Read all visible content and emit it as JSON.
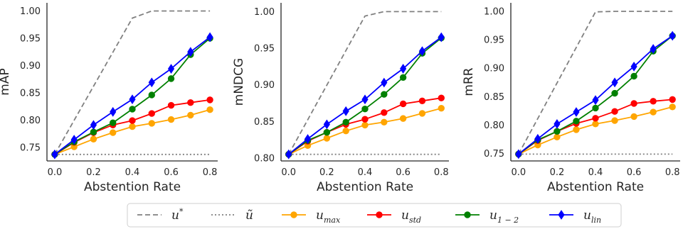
{
  "chart_data": [
    {
      "type": "line",
      "ylabel": "mAP",
      "xlabel": "Abstention Rate",
      "xlim": [
        -0.04,
        0.84
      ],
      "ylim": [
        0.725,
        1.015
      ],
      "xticks": [
        "0.0",
        "0.2",
        "0.4",
        "0.6",
        "0.8"
      ],
      "yticks": [
        "0.75",
        "0.80",
        "0.85",
        "0.90",
        "0.95",
        "1.00"
      ],
      "series": [
        {
          "name": "u*",
          "x": [
            0,
            0.4,
            0.5,
            0.8
          ],
          "values": [
            0.737,
            0.987,
            1.0,
            1.0
          ]
        },
        {
          "name": "ũ",
          "x": [
            0,
            0.8
          ],
          "values": [
            0.737,
            0.737
          ]
        },
        {
          "name": "u_max",
          "x": [
            0,
            0.1,
            0.2,
            0.3,
            0.4,
            0.5,
            0.6,
            0.7,
            0.8
          ],
          "values": [
            0.737,
            0.751,
            0.765,
            0.777,
            0.788,
            0.794,
            0.801,
            0.809,
            0.819
          ]
        },
        {
          "name": "u_std",
          "x": [
            0,
            0.1,
            0.2,
            0.3,
            0.4,
            0.5,
            0.6,
            0.7,
            0.8
          ],
          "values": [
            0.737,
            0.759,
            0.777,
            0.791,
            0.799,
            0.812,
            0.827,
            0.832,
            0.837
          ]
        },
        {
          "name": "u_{1-2}",
          "x": [
            0,
            0.1,
            0.2,
            0.3,
            0.4,
            0.5,
            0.6,
            0.7,
            0.8
          ],
          "values": [
            0.737,
            0.76,
            0.778,
            0.795,
            0.82,
            0.846,
            0.876,
            0.92,
            0.95
          ]
        },
        {
          "name": "u_lin",
          "x": [
            0,
            0.1,
            0.2,
            0.3,
            0.4,
            0.5,
            0.6,
            0.7,
            0.8
          ],
          "values": [
            0.737,
            0.764,
            0.791,
            0.815,
            0.838,
            0.869,
            0.894,
            0.925,
            0.952
          ]
        }
      ]
    },
    {
      "type": "line",
      "ylabel": "mNDCG",
      "xlabel": "Abstention Rate",
      "xlim": [
        -0.04,
        0.84
      ],
      "ylim": [
        0.796,
        1.012
      ],
      "xticks": [
        "0.0",
        "0.2",
        "0.4",
        "0.6",
        "0.8"
      ],
      "yticks": [
        "0.80",
        "0.85",
        "0.90",
        "0.95",
        "1.00"
      ],
      "series": [
        {
          "name": "u*",
          "x": [
            0,
            0.4,
            0.5,
            0.8
          ],
          "values": [
            0.805,
            0.994,
            1.0,
            1.0
          ]
        },
        {
          "name": "ũ",
          "x": [
            0,
            0.8
          ],
          "values": [
            0.805,
            0.805
          ]
        },
        {
          "name": "u_max",
          "x": [
            0,
            0.1,
            0.2,
            0.3,
            0.4,
            0.5,
            0.6,
            0.7,
            0.8
          ],
          "values": [
            0.805,
            0.817,
            0.827,
            0.837,
            0.845,
            0.849,
            0.854,
            0.861,
            0.868
          ]
        },
        {
          "name": "u_std",
          "x": [
            0,
            0.1,
            0.2,
            0.3,
            0.4,
            0.5,
            0.6,
            0.7,
            0.8
          ],
          "values": [
            0.805,
            0.823,
            0.835,
            0.846,
            0.853,
            0.862,
            0.874,
            0.878,
            0.882
          ]
        },
        {
          "name": "u_{1-2}",
          "x": [
            0,
            0.1,
            0.2,
            0.3,
            0.4,
            0.5,
            0.6,
            0.7,
            0.8
          ],
          "values": [
            0.805,
            0.824,
            0.835,
            0.849,
            0.867,
            0.887,
            0.91,
            0.943,
            0.964
          ]
        },
        {
          "name": "u_lin",
          "x": [
            0,
            0.1,
            0.2,
            0.3,
            0.4,
            0.5,
            0.6,
            0.7,
            0.8
          ],
          "values": [
            0.805,
            0.826,
            0.846,
            0.864,
            0.88,
            0.903,
            0.922,
            0.946,
            0.965
          ]
        }
      ]
    },
    {
      "type": "line",
      "ylabel": "mRR",
      "xlabel": "Abstention Rate",
      "xlim": [
        -0.04,
        0.84
      ],
      "ylim": [
        0.737,
        1.015
      ],
      "xticks": [
        "0.0",
        "0.2",
        "0.4",
        "0.6",
        "0.8"
      ],
      "yticks": [
        "0.75",
        "0.80",
        "0.85",
        "0.90",
        "0.95",
        "1.00"
      ],
      "series": [
        {
          "name": "u*",
          "x": [
            0,
            0.4,
            0.5,
            0.8
          ],
          "values": [
            0.749,
            0.999,
            1.0,
            1.0
          ]
        },
        {
          "name": "ũ",
          "x": [
            0,
            0.8
          ],
          "values": [
            0.749,
            0.749
          ]
        },
        {
          "name": "u_max",
          "x": [
            0,
            0.1,
            0.2,
            0.3,
            0.4,
            0.5,
            0.6,
            0.7,
            0.8
          ],
          "values": [
            0.749,
            0.765,
            0.779,
            0.792,
            0.802,
            0.808,
            0.815,
            0.823,
            0.832
          ]
        },
        {
          "name": "u_std",
          "x": [
            0,
            0.1,
            0.2,
            0.3,
            0.4,
            0.5,
            0.6,
            0.7,
            0.8
          ],
          "values": [
            0.749,
            0.773,
            0.789,
            0.803,
            0.812,
            0.824,
            0.838,
            0.842,
            0.845
          ]
        },
        {
          "name": "u_{1-2}",
          "x": [
            0,
            0.1,
            0.2,
            0.3,
            0.4,
            0.5,
            0.6,
            0.7,
            0.8
          ],
          "values": [
            0.749,
            0.774,
            0.789,
            0.807,
            0.83,
            0.856,
            0.886,
            0.93,
            0.957
          ]
        },
        {
          "name": "u_lin",
          "x": [
            0,
            0.1,
            0.2,
            0.3,
            0.4,
            0.5,
            0.6,
            0.7,
            0.8
          ],
          "values": [
            0.749,
            0.776,
            0.802,
            0.823,
            0.844,
            0.875,
            0.903,
            0.934,
            0.957
          ]
        }
      ]
    }
  ],
  "legend": {
    "placement": "bottom-center",
    "entries": [
      {
        "key": "u*",
        "label": "u",
        "sup": "*",
        "color": "#808080",
        "style": "dashed",
        "marker": "none"
      },
      {
        "key": "ũ",
        "label": "ũ",
        "color": "#808080",
        "style": "dotted",
        "marker": "none"
      },
      {
        "key": "u_max",
        "label": "u",
        "sub": "max",
        "color": "#ffa500",
        "style": "solid",
        "marker": "circle"
      },
      {
        "key": "u_std",
        "label": "u",
        "sub": "std",
        "color": "#ff0000",
        "style": "solid",
        "marker": "circle"
      },
      {
        "key": "u_{1-2}",
        "label": "u",
        "sub": "1 − 2",
        "color": "#008000",
        "style": "solid",
        "marker": "circle"
      },
      {
        "key": "u_lin",
        "label": "u",
        "sub": "lin",
        "color": "#0000ff",
        "style": "solid",
        "marker": "diamond"
      }
    ]
  },
  "styles": {
    "u*": {
      "color": "#808080",
      "dash": "7,4",
      "marker": "none"
    },
    "ũ": {
      "color": "#808080",
      "dash": "2,3",
      "marker": "none"
    },
    "u_max": {
      "color": "#ffa500",
      "dash": "",
      "marker": "circle"
    },
    "u_std": {
      "color": "#ff0000",
      "dash": "",
      "marker": "circle"
    },
    "u_{1-2}": {
      "color": "#008000",
      "dash": "",
      "marker": "circle"
    },
    "u_lin": {
      "color": "#0000ff",
      "dash": "",
      "marker": "diamond"
    }
  }
}
